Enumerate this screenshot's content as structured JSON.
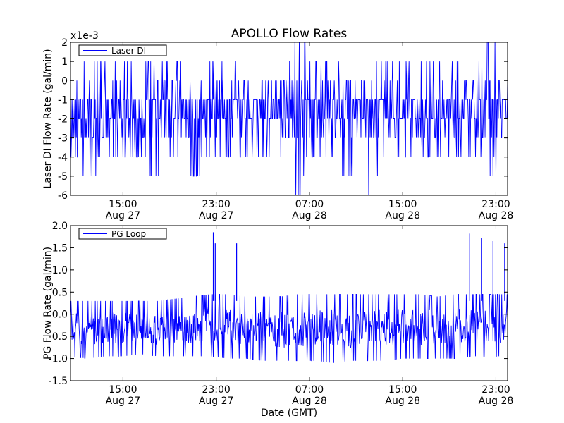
{
  "figure": {
    "title": "APOLLO Flow Rates",
    "xlabel": "Date (GMT)"
  },
  "colors": {
    "series": "#0000ff",
    "frame": "#000000",
    "background": "#ffffff"
  },
  "chart_data": [
    {
      "type": "line",
      "title": "APOLLO Flow Rates",
      "ylabel": "Laser DI Flow Rate (gal/min)",
      "y_offset_label": "x1e-3",
      "y_scale_factor": 0.001,
      "ylim": [
        -6,
        2
      ],
      "yticks": [
        -6,
        -5,
        -4,
        -3,
        -2,
        -1,
        0,
        1,
        2
      ],
      "ytick_labels": [
        "-6",
        "-5",
        "-4",
        "-3",
        "-2",
        "-1",
        "0",
        "1",
        "2"
      ],
      "xlim": [
        "2014-08-27 10:30",
        "2014-08-29 00:00"
      ],
      "xticks": [
        "2014-08-27 15:00",
        "2014-08-27 23:00",
        "2014-08-28 07:00",
        "2014-08-28 15:00",
        "2014-08-28 23:00"
      ],
      "xtick_labels": [
        [
          "15:00",
          "Aug 27"
        ],
        [
          "23:00",
          "Aug 27"
        ],
        [
          "07:00",
          "Aug 28"
        ],
        [
          "15:00",
          "Aug 28"
        ],
        [
          "23:00",
          "Aug 28"
        ]
      ],
      "legend": {
        "entries": [
          "Laser DI"
        ],
        "placement": "top-left"
      },
      "series": [
        {
          "name": "Laser DI",
          "x": [
            "2014-08-27 10:30",
            "2014-08-27 12:00",
            "2014-08-27 13:30",
            "2014-08-27 15:00",
            "2014-08-27 16:30",
            "2014-08-27 18:00",
            "2014-08-27 19:30",
            "2014-08-27 21:00",
            "2014-08-27 22:30",
            "2014-08-28 00:00",
            "2014-08-28 01:30",
            "2014-08-28 03:00",
            "2014-08-28 04:30",
            "2014-08-28 06:00",
            "2014-08-28 07:30",
            "2014-08-28 09:00",
            "2014-08-28 10:30",
            "2014-08-28 12:00",
            "2014-08-28 13:30",
            "2014-08-28 15:00",
            "2014-08-28 16:30",
            "2014-08-28 18:00",
            "2014-08-28 19:30",
            "2014-08-28 21:00",
            "2014-08-28 22:30",
            "2014-08-29 00:00"
          ],
          "y": [
            -1.5,
            -2,
            -1.5,
            -1.5,
            -2,
            -1.5,
            -1.5,
            -2,
            -1.5,
            -1.5,
            -2,
            -1.5,
            -1.5,
            -1.5,
            -2,
            -1.5,
            -1.5,
            -2,
            -1.5,
            -1.5,
            -2,
            -1.5,
            -1.5,
            -1.5,
            -2,
            -1.5
          ],
          "band_min": [
            -4,
            -5,
            -4,
            -4,
            -4,
            -5,
            -4,
            -5,
            -4,
            -4,
            -4,
            -4,
            -4,
            -6,
            -4,
            -4,
            -5,
            -6,
            -4,
            -4,
            -4,
            -4,
            -4,
            -4,
            -5,
            -4
          ],
          "band_max": [
            1,
            1,
            1,
            1,
            1,
            1,
            1,
            0,
            1,
            1,
            0,
            0,
            0,
            2,
            1,
            1,
            0,
            0,
            1,
            1,
            1,
            1,
            1,
            0,
            2,
            1
          ]
        }
      ]
    },
    {
      "type": "line",
      "ylabel": "PG Flow Rate (gal/min)",
      "ylim": [
        -1.5,
        2.0
      ],
      "yticks": [
        -1.5,
        -1.0,
        -0.5,
        0.0,
        0.5,
        1.0,
        1.5,
        2.0
      ],
      "ytick_labels": [
        "-1.5",
        "-1.0",
        "-0.5",
        "0.0",
        "0.5",
        "1.0",
        "1.5",
        "2.0"
      ],
      "xlim": [
        "2014-08-27 10:30",
        "2014-08-29 00:00"
      ],
      "xticks": [
        "2014-08-27 15:00",
        "2014-08-27 23:00",
        "2014-08-28 07:00",
        "2014-08-28 15:00",
        "2014-08-28 23:00"
      ],
      "xtick_labels": [
        [
          "15:00",
          "Aug 27"
        ],
        [
          "23:00",
          "Aug 27"
        ],
        [
          "07:00",
          "Aug 28"
        ],
        [
          "15:00",
          "Aug 28"
        ],
        [
          "23:00",
          "Aug 28"
        ]
      ],
      "xlabel": "Date (GMT)",
      "legend": {
        "entries": [
          "PG Loop"
        ],
        "placement": "top-left"
      },
      "series": [
        {
          "name": "PG Loop",
          "x": [
            "2014-08-27 10:30",
            "2014-08-27 12:00",
            "2014-08-27 13:30",
            "2014-08-27 15:00",
            "2014-08-27 16:30",
            "2014-08-27 18:00",
            "2014-08-27 19:30",
            "2014-08-27 21:00",
            "2014-08-27 22:30",
            "2014-08-28 00:00",
            "2014-08-28 01:30",
            "2014-08-28 03:00",
            "2014-08-28 04:30",
            "2014-08-28 06:00",
            "2014-08-28 07:30",
            "2014-08-28 09:00",
            "2014-08-28 10:30",
            "2014-08-28 12:00",
            "2014-08-28 13:30",
            "2014-08-28 15:00",
            "2014-08-28 16:30",
            "2014-08-28 18:00",
            "2014-08-28 19:30",
            "2014-08-28 21:00",
            "2014-08-28 22:30",
            "2014-08-29 00:00"
          ],
          "y": [
            -0.3,
            -0.35,
            -0.3,
            -0.3,
            -0.3,
            -0.35,
            -0.3,
            -0.3,
            -0.2,
            -0.3,
            -0.3,
            -0.3,
            -0.35,
            -0.35,
            -0.3,
            -0.3,
            -0.35,
            -0.35,
            -0.3,
            -0.3,
            -0.3,
            -0.3,
            -0.3,
            -0.25,
            -0.25,
            -0.3
          ],
          "band_min": [
            -0.95,
            -1.0,
            -0.95,
            -0.95,
            -0.9,
            -0.95,
            -0.95,
            -0.95,
            -0.95,
            -1.0,
            -1.0,
            -1.05,
            -1.05,
            -1.05,
            -1.05,
            -1.1,
            -1.05,
            -1.05,
            -1.05,
            -1.0,
            -1.0,
            -1.0,
            -1.0,
            -0.95,
            -0.95,
            -0.95
          ],
          "band_max": [
            0.3,
            0.3,
            0.3,
            0.3,
            0.3,
            0.3,
            0.35,
            0.4,
            0.45,
            0.45,
            0.4,
            0.4,
            0.4,
            0.45,
            0.45,
            0.45,
            0.45,
            0.45,
            0.45,
            0.45,
            0.45,
            0.4,
            0.45,
            0.45,
            0.45,
            0.45
          ],
          "spikes": [
            {
              "x": "2014-08-27 22:45",
              "y": 1.85
            },
            {
              "x": "2014-08-27 22:55",
              "y": 1.6
            },
            {
              "x": "2014-08-28 00:45",
              "y": 1.6
            },
            {
              "x": "2014-08-28 20:45",
              "y": 1.82
            },
            {
              "x": "2014-08-28 21:45",
              "y": 1.72
            },
            {
              "x": "2014-08-28 22:45",
              "y": 1.65
            },
            {
              "x": "2014-08-28 23:45",
              "y": 1.6
            }
          ]
        }
      ]
    }
  ]
}
